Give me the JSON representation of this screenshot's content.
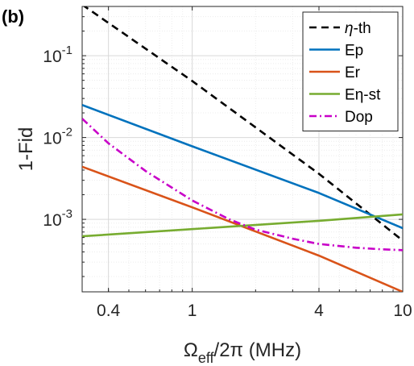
{
  "panel_label": "(b)",
  "chart_data": {
    "type": "line",
    "xscale": "log",
    "yscale": "log",
    "xlim": [
      0.3,
      10
    ],
    "ylim": [
      0.00013,
      0.4
    ],
    "grid": true,
    "minor_grid": true,
    "legend_position": "top-right",
    "xlabel": {
      "main": "Ω",
      "sub": "eff",
      "rest": "/2π (MHz)"
    },
    "ylabel": "1-Fid",
    "xticks": [
      {
        "value": 0.4,
        "label": "0.4"
      },
      {
        "value": 1,
        "label": "1"
      },
      {
        "value": 4,
        "label": "4"
      },
      {
        "value": 10,
        "label": "10"
      }
    ],
    "yticks": [
      {
        "value": 0.001,
        "base": "10",
        "exp": "-3"
      },
      {
        "value": 0.01,
        "base": "10",
        "exp": "-2"
      },
      {
        "value": 0.1,
        "base": "10",
        "exp": "-1"
      }
    ],
    "series": [
      {
        "name": "η-th",
        "name_parts": [
          "η",
          "-th"
        ],
        "color": "#000000",
        "dash": "dashed",
        "x": [
          0.3,
          1,
          4,
          10
        ],
        "y": [
          0.42,
          0.049,
          0.0036,
          0.00055
        ]
      },
      {
        "name": "Ep",
        "name_parts": [
          "",
          "Ep"
        ],
        "color": "#0072BD",
        "dash": "solid",
        "x": [
          0.3,
          1,
          4,
          10
        ],
        "y": [
          0.025,
          0.0078,
          0.0021,
          0.00078
        ]
      },
      {
        "name": "Er",
        "name_parts": [
          "",
          "Er"
        ],
        "color": "#D95319",
        "dash": "solid",
        "x": [
          0.3,
          1,
          4,
          10
        ],
        "y": [
          0.0044,
          0.0014,
          0.00036,
          0.00013
        ]
      },
      {
        "name": "Eη-st",
        "name_parts": [
          "E",
          "η-st"
        ],
        "color": "#77AC30",
        "dash": "solid",
        "x": [
          0.3,
          1,
          4,
          10
        ],
        "y": [
          0.00062,
          0.00076,
          0.00096,
          0.00115
        ]
      },
      {
        "name": "Dop",
        "name_parts": [
          "",
          "Dop"
        ],
        "color": "#C800C8",
        "dash": "dashdot",
        "x": [
          0.3,
          0.4,
          0.6,
          1,
          1.5,
          2,
          3,
          4,
          6,
          8,
          10
        ],
        "y": [
          0.017,
          0.0085,
          0.0039,
          0.0017,
          0.001,
          0.00075,
          0.00058,
          0.0005,
          0.00045,
          0.00043,
          0.00042
        ]
      }
    ]
  }
}
